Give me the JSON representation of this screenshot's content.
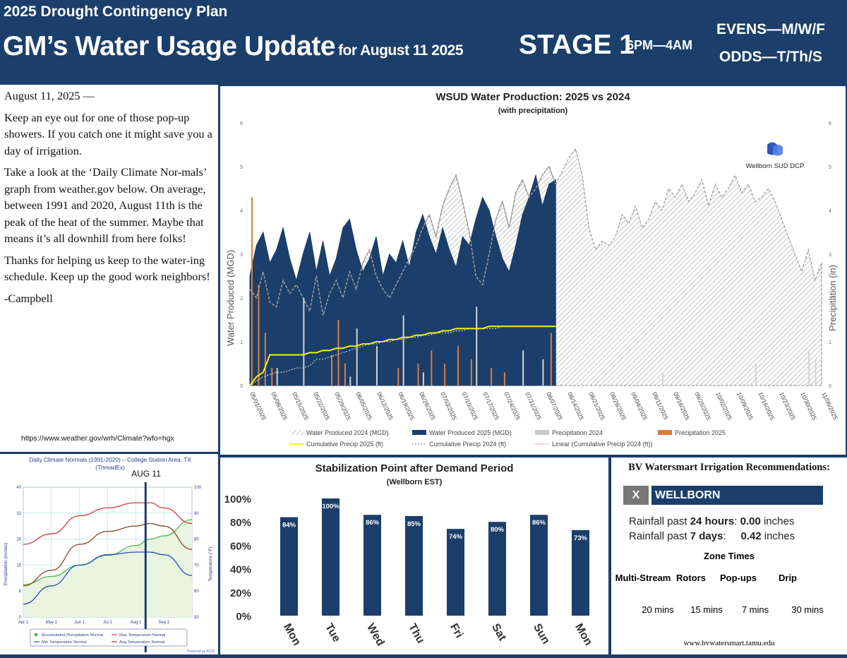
{
  "header": {
    "plan": "2025 Drought Contingency Plan",
    "title": "GM’s Water Usage Update",
    "date_label": "for August 11 2025",
    "stage": "STAGE 1",
    "hours": "6PM—4AM",
    "evens": "EVENS—M/W/F",
    "odds": "ODDS—T/Th/S"
  },
  "letter": {
    "dateline": "August 11, 2025 —",
    "p1": "Keep an eye out for one of those pop-up showers.  If you catch one it might save you a day of irrigation.",
    "p2": "Take a look at the ‘Daily Climate Nor-mals’ graph from weather.gov below.  On average, between 1991 and 2020, August 11th is the peak of the heat of the summer.  Maybe that means it’s all downhill from here folks!",
    "p3": "Thanks for helping us keep to the water-ing schedule.  Keep up the good work neighbors!",
    "signature": "-Campbell",
    "url": "https://www.weather.gov/wrh/Climate?wfo=hgx"
  },
  "colors": {
    "navy": "#1b3e6a",
    "orange": "#e07a3a",
    "gray": "#c8c8c8",
    "yellow": "#f2f20a"
  },
  "production_chart": {
    "chart_data": {
      "type": "area",
      "title": "WSUD Water Production: 2025 vs 2024",
      "subtitle": "(with precipitation)",
      "ylabel": "Water Produced (MGD)",
      "y2label": "Precipitation (in)",
      "ylim": [
        0,
        6
      ],
      "y2lim": [
        0,
        6
      ],
      "yticks": [
        "0",
        "1",
        "2",
        "3",
        "4",
        "5",
        "6"
      ],
      "x_tick_labels": [
        "05/01/2025",
        "05/08/2025",
        "05/15/2025",
        "05/22/2025",
        "05/29/2025",
        "06/05/2025",
        "06/12/2025",
        "06/19/2025",
        "06/26/2025",
        "07/03/2025",
        "07/10/2025",
        "07/17/2025",
        "07/24/2025",
        "07/31/2025",
        "08/07/2025",
        "08/14/2025",
        "08/21/2025",
        "08/28/2025",
        "09/04/2025",
        "09/11/2025",
        "09/18/2025",
        "09/25/2025",
        "10/02/2025",
        "10/09/2025",
        "10/16/2025",
        "10/23/2025",
        "10/30/2025",
        "11/06/2025"
      ],
      "legend": [
        "Water Produced 2024 (MGD)",
        "Water Produced 2025 (MGD)",
        "Precipitation 2024",
        "Precipitation 2025",
        "Cumulative Precip 2025 (ft)",
        "Cumulative Precip 2024 (ft)",
        "Linear (Cumulative Precip 2024 (ft))"
      ],
      "logo_text": "Wellborn SUD DCP",
      "series": [
        {
          "name": "Water Produced 2024 (MGD)",
          "values": [
            2.2,
            2.0,
            2.6,
            1.9,
            1.8,
            2.4,
            2.1,
            2.3,
            2.0,
            1.7,
            2.5,
            1.6,
            2.1,
            2.4,
            2.0,
            2.6,
            2.2,
            2.8,
            3.1,
            2.5,
            2.2,
            2.0,
            2.3,
            2.6,
            2.9,
            3.2,
            3.6,
            3.9,
            3.4,
            4.1,
            4.5,
            4.8,
            4.2,
            3.5,
            2.5,
            2.3,
            3.0,
            3.8,
            4.2,
            3.6,
            4.4,
            4.7,
            4.3,
            4.5,
            4.8,
            5.0,
            4.6,
            4.9,
            5.2,
            5.4,
            4.8,
            3.6,
            3.1,
            3.3,
            3.2,
            3.4,
            3.9,
            3.7,
            4.1,
            3.6,
            3.8,
            4.2,
            4.0,
            4.5,
            4.3,
            4.6,
            4.2,
            4.4,
            4.7,
            4.1,
            4.6,
            4.3,
            4.5,
            4.8,
            4.4,
            4.6,
            4.2,
            4.3,
            4.5,
            4.2,
            3.8,
            3.4,
            3.0,
            2.6,
            3.1,
            2.4,
            2.8
          ]
        },
        {
          "name": "Water Produced 2025 (MGD)",
          "values": [
            2.5,
            3.2,
            3.5,
            2.8,
            3.1,
            3.6,
            2.9,
            2.4,
            3.0,
            3.5,
            2.6,
            3.3,
            2.5,
            2.9,
            3.6,
            3.8,
            3.1,
            2.6,
            2.9,
            3.4,
            2.5,
            3.0,
            2.8,
            3.3,
            2.7,
            3.5,
            3.9,
            3.4,
            3.0,
            3.6,
            3.1,
            2.7,
            3.4,
            3.2,
            3.8,
            4.3,
            4.0,
            3.4,
            2.9,
            2.6,
            3.2,
            3.9,
            4.3,
            4.8,
            4.1,
            4.6,
            4.7
          ]
        },
        {
          "name": "Cumulative Precip 2025 (ft)",
          "values": [
            0.0,
            0.2,
            0.3,
            0.7,
            0.7,
            0.7,
            0.7,
            0.7,
            0.7,
            0.75,
            0.75,
            0.8,
            0.8,
            0.85,
            0.85,
            0.9,
            0.9,
            0.95,
            0.95,
            1.0,
            1.0,
            1.05,
            1.05,
            1.1,
            1.1,
            1.15,
            1.15,
            1.2,
            1.2,
            1.25,
            1.25,
            1.3,
            1.3,
            1.3,
            1.3,
            1.3,
            1.35,
            1.35,
            1.35,
            1.35,
            1.35,
            1.35,
            1.35,
            1.35,
            1.35,
            1.35,
            1.35
          ]
        },
        {
          "name": "Cumulative Precip 2024 (ft)",
          "values": [
            0.0,
            0.1,
            0.2,
            0.25,
            0.3,
            0.3,
            0.35,
            0.4,
            0.4,
            0.45,
            0.6,
            0.6,
            0.65,
            0.7,
            0.75,
            0.8,
            0.85,
            0.9,
            0.95,
            0.95,
            1.0,
            1.0,
            1.05,
            1.05,
            1.1,
            1.1,
            1.15,
            1.15,
            1.2,
            1.2,
            1.2,
            1.25,
            1.25,
            1.3,
            1.3,
            1.3,
            1.3,
            1.3,
            1.35,
            1.35,
            1.35,
            1.35,
            1.35,
            1.35,
            1.35,
            1.35,
            1.35
          ]
        }
      ]
    }
  },
  "normals_chart": {
    "chart_data": {
      "type": "line",
      "title": "Daily Climate Normals (1991-2020) – College Station Area, TX",
      "subtitle": "(ThreadEx)",
      "marker_label": "AUG 11",
      "ylabel": "Precipitation (inches)",
      "y2label": "Temperature (°F)",
      "ylim": [
        0,
        40
      ],
      "y2lim": [
        50,
        100
      ],
      "yticks": [
        "0",
        "8",
        "16",
        "24",
        "32",
        "40"
      ],
      "y2ticks": [
        "50",
        "60",
        "70",
        "80",
        "90",
        "100"
      ],
      "categories": [
        "Apr 1",
        "May 1",
        "Jun 1",
        "Jul 1",
        "Aug 1",
        "Sep 1"
      ],
      "legend": [
        "Accumulated Precipitation Normal",
        "Max Temperature Normal",
        "Min Temperature Normal",
        "Avg Temperature Normal"
      ],
      "credit": "Powered by ACIS",
      "series": [
        {
          "name": "Accumulated Precipitation Normal",
          "x": [
            0,
            1,
            2,
            3,
            4,
            4.5,
            5,
            6
          ],
          "values": [
            10,
            12.5,
            16,
            19,
            22,
            24,
            25,
            30
          ]
        },
        {
          "name": "Max Temperature Normal",
          "x": [
            0,
            1,
            2,
            3,
            4,
            4.5,
            5,
            6
          ],
          "y2": [
            78,
            82,
            89,
            92,
            94,
            94,
            92,
            86
          ]
        },
        {
          "name": "Min Temperature Normal",
          "x": [
            0,
            1,
            2,
            3,
            4,
            4.5,
            5,
            6
          ],
          "y2": [
            55,
            62,
            70,
            74,
            75,
            75,
            74,
            66
          ]
        },
        {
          "name": "Avg Temperature Normal",
          "x": [
            0,
            1,
            2,
            3,
            4,
            4.5,
            5,
            6
          ],
          "y2": [
            62,
            68,
            78,
            83,
            85,
            86,
            85,
            76
          ]
        }
      ]
    }
  },
  "stabilization_chart": {
    "chart_data": {
      "type": "bar",
      "title": "Stabilization Point after Demand Period",
      "subtitle": "(Wellborn EST)",
      "categories": [
        "Mon",
        "Tue",
        "Wed",
        "Thu",
        "Fri",
        "Sat",
        "Sun",
        "Mon"
      ],
      "values": [
        84,
        100,
        86,
        85,
        74,
        80,
        86,
        73
      ],
      "value_labels": [
        "84%",
        "100%",
        "86%",
        "85%",
        "74%",
        "80%",
        "86%",
        "73%"
      ],
      "ylim": [
        0,
        100
      ],
      "yticks": [
        "0%",
        "20%",
        "40%",
        "60%",
        "80%",
        "100%"
      ]
    }
  },
  "bv": {
    "title": "BV Watersmart Irrigation Recommendations:",
    "close": "X",
    "station": "WELLBORN",
    "rain24_a": "Rainfall past ",
    "rain24_b": "24 hours",
    "rain24_c": ": ",
    "rain24_v": "0.00",
    "rain24_d": " inches",
    "rain7_a": "Rainfall past ",
    "rain7_b": "7 days",
    "rain7_c": ":     ",
    "rain7_v": "0.42",
    "rain7_d": " inches",
    "zone_title": "Zone Times",
    "zones": [
      {
        "name": "Multi-Stream",
        "time": "20 mins"
      },
      {
        "name": "Rotors",
        "time": "15 mins"
      },
      {
        "name": "Pop-ups",
        "time": "7 mins"
      },
      {
        "name": "Drip",
        "time": "30 mins"
      }
    ],
    "url": "www.bvwatersmart.tamu.edu"
  }
}
